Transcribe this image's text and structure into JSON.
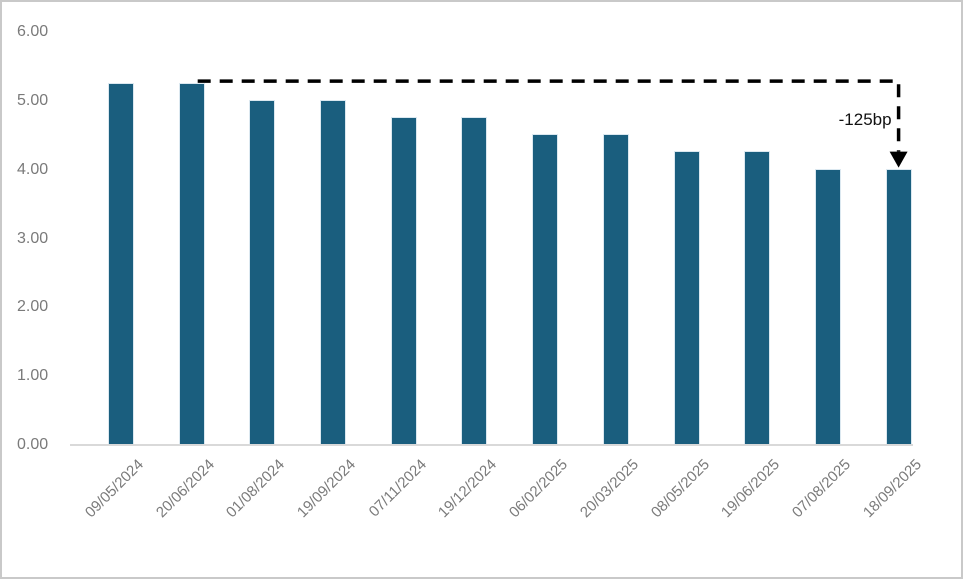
{
  "chart_data": {
    "type": "bar",
    "categories": [
      "09/05/2024",
      "20/06/2024",
      "01/08/2024",
      "19/09/2024",
      "07/11/2024",
      "19/12/2024",
      "06/02/2025",
      "20/03/2025",
      "08/05/2025",
      "19/06/2025",
      "07/08/2025",
      "18/09/2025"
    ],
    "values": [
      5.25,
      5.25,
      5.0,
      5.0,
      4.75,
      4.75,
      4.5,
      4.5,
      4.25,
      4.25,
      4.0,
      4.0
    ],
    "title": "",
    "xlabel": "",
    "ylabel": "",
    "ylim": [
      0,
      6
    ],
    "ytick_step": 1,
    "ytick_labels": [
      "0.00",
      "1.00",
      "2.00",
      "3.00",
      "4.00",
      "5.00",
      "6.00"
    ],
    "grid": false,
    "legend": "none",
    "bar_color": "#1a5e7e",
    "axis_line_color": "#d9d9d9",
    "tick_label_color": "#7a7a7a",
    "annotation": {
      "label": "-125bp",
      "from_category_index": 1,
      "to_category_index": 11,
      "line_color": "#000000",
      "line_style": "dashed",
      "arrow": "down"
    }
  }
}
